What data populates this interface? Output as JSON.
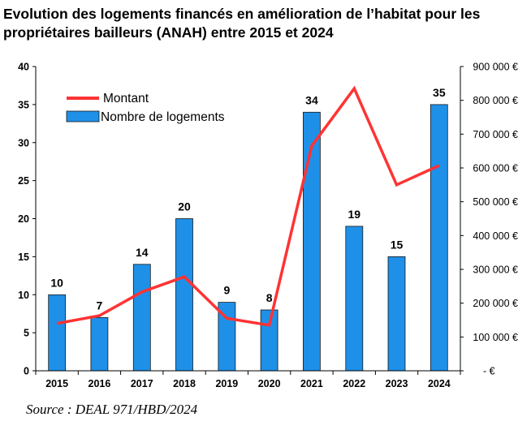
{
  "title": "Evolution des logements financés en amélioration de l’habitat pour les propriétaires bailleurs (ANAH) entre 2015 et 2024",
  "source": "Source : DEAL 971/HBD/2024",
  "chart_data": {
    "type": "bar",
    "categories": [
      "2015",
      "2016",
      "2017",
      "2018",
      "2019",
      "2020",
      "2021",
      "2022",
      "2023",
      "2024"
    ],
    "series": [
      {
        "name": "Nombre de logements",
        "type": "bar",
        "axis": "left",
        "color": "#1e90e8",
        "values": [
          10,
          7,
          14,
          20,
          9,
          8,
          34,
          19,
          15,
          35
        ],
        "data_labels": [
          "10",
          "7",
          "14",
          "20",
          "9",
          "8",
          "34",
          "19",
          "15",
          "35"
        ]
      },
      {
        "name": "Montant",
        "type": "line",
        "axis": "right",
        "color": "#ff3333",
        "values": [
          140000,
          163000,
          233000,
          278000,
          155000,
          135000,
          665000,
          835000,
          550000,
          607000
        ]
      }
    ],
    "y_left": {
      "range": [
        0,
        40
      ],
      "ticks": [
        0,
        5,
        10,
        15,
        20,
        25,
        30,
        35,
        40
      ],
      "tick_labels": [
        "0",
        "5",
        "10",
        "15",
        "20",
        "25",
        "30",
        "35",
        "40"
      ]
    },
    "y_right": {
      "range": [
        0,
        900000
      ],
      "ticks": [
        0,
        100000,
        200000,
        300000,
        400000,
        500000,
        600000,
        700000,
        800000,
        900000
      ],
      "tick_labels": [
        "-   €",
        "100 000 €",
        "200 000 €",
        "300 000 €",
        "400 000 €",
        "500 000 €",
        "600 000 €",
        "700 000 €",
        "800 000 €",
        "900 000 €"
      ]
    },
    "legend": {
      "placement": "top-left",
      "entries": [
        "Montant",
        "Nombre de logements"
      ]
    },
    "grid": false,
    "xlabel": "",
    "ylabel": ""
  }
}
